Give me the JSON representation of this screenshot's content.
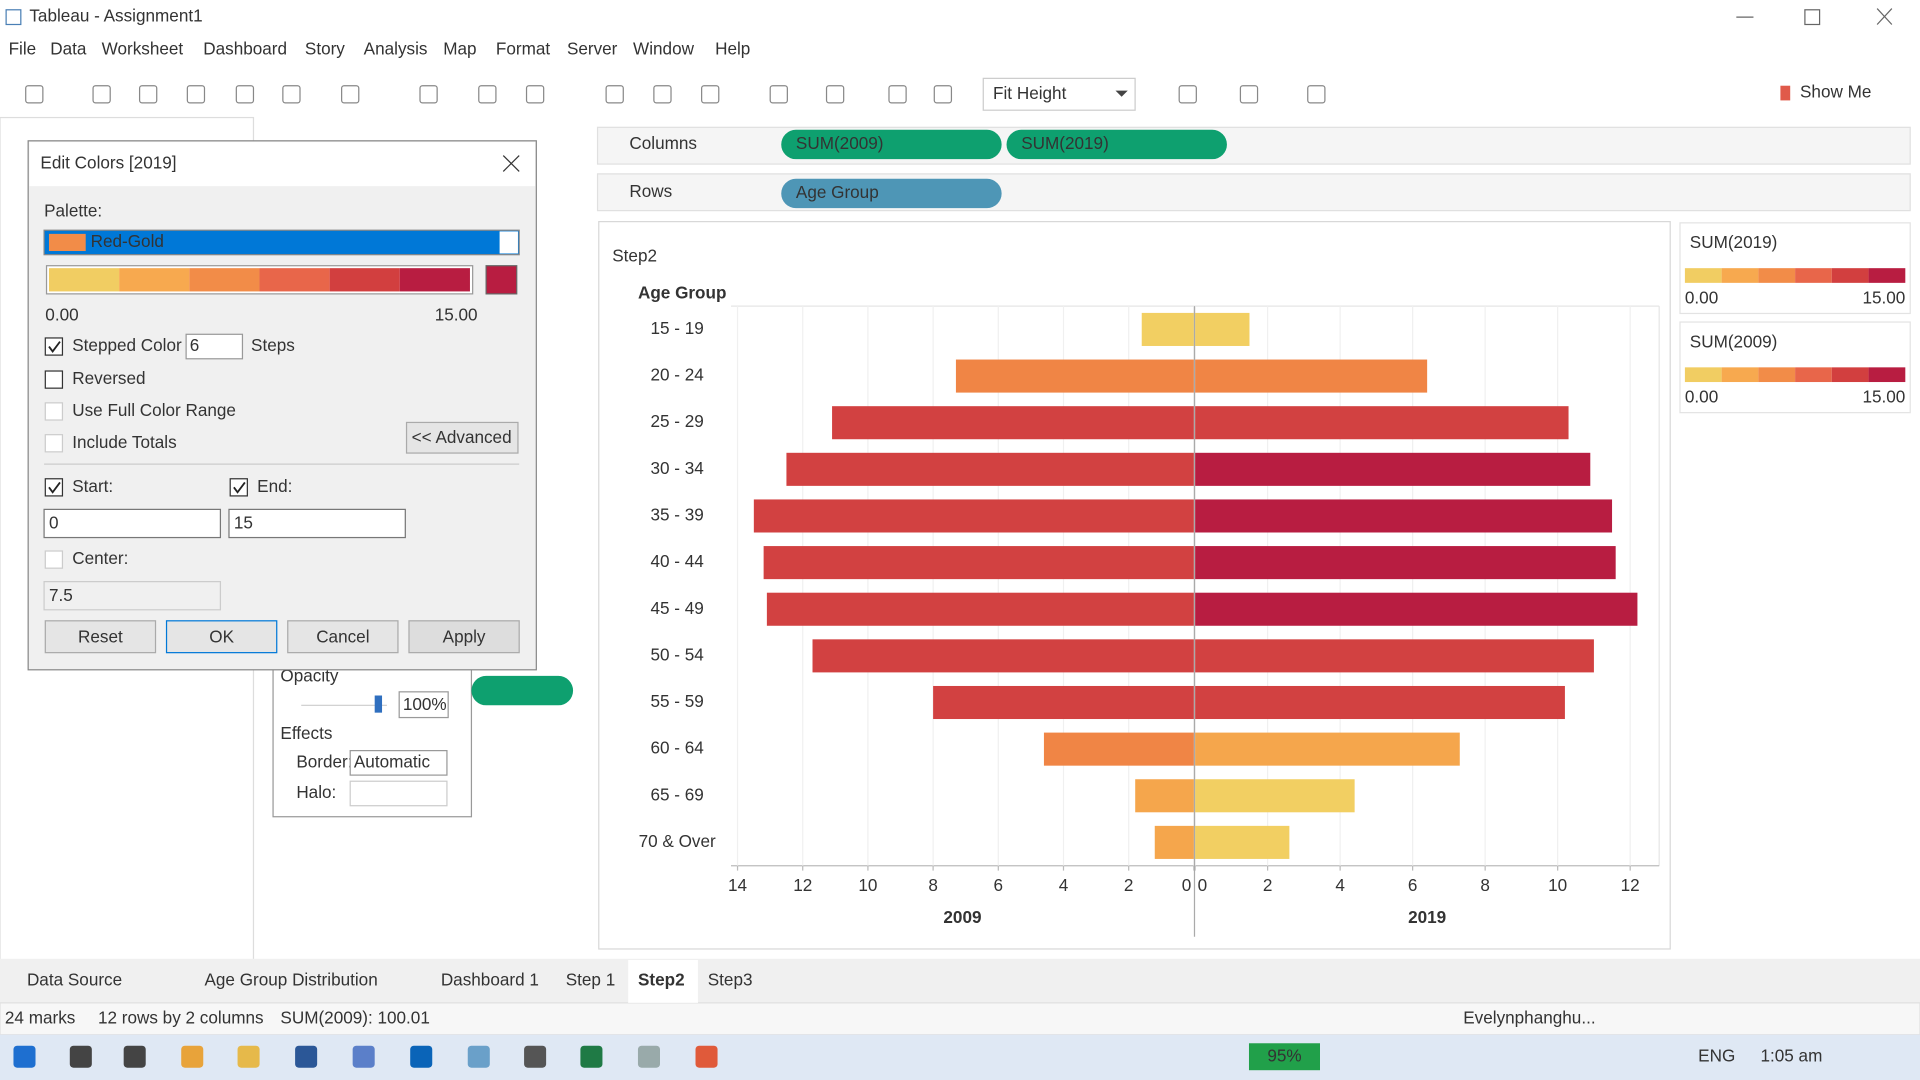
{
  "window": {
    "title": "Tableau - Assignment1"
  },
  "menu": [
    "File",
    "Data",
    "Worksheet",
    "Dashboard",
    "Story",
    "Analysis",
    "Map",
    "Format",
    "Server",
    "Window",
    "Help"
  ],
  "toolbar": {
    "fit": "Fit Height",
    "show_me": "Show Me"
  },
  "shelves": {
    "columns_label": "Columns",
    "columns": [
      "SUM(2009)",
      "SUM(2019)"
    ],
    "rows_label": "Rows",
    "rows": [
      "Age Group"
    ]
  },
  "dialog": {
    "title": "Edit Colors [2019]",
    "palette_label": "Palette:",
    "palette": "Red-Gold",
    "palette_colors": [
      "#f1cd62",
      "#f7a94f",
      "#f28c48",
      "#e8664a",
      "#d23f3f",
      "#b81d41"
    ],
    "range_min": "0.00",
    "range_max": "15.00",
    "stepped": "Stepped Color",
    "steps_value": "6",
    "steps": "Steps",
    "reversed": "Reversed",
    "full_range": "Use Full Color Range",
    "include_totals": "Include Totals",
    "advanced": "<< Advanced",
    "start": "Start:",
    "end": "End:",
    "start_value": "0",
    "end_value": "15",
    "center": "Center:",
    "center_value": "7.5",
    "buttons": [
      "Reset",
      "OK",
      "Cancel",
      "Apply"
    ]
  },
  "marks_card": {
    "opacity": "Opacity",
    "opacity_value": "100%",
    "effects": "Effects",
    "border": "Border:",
    "border_value": "Automatic",
    "halo": "Halo:"
  },
  "chart_data": {
    "type": "bar",
    "title": "Step2",
    "y_label": "Age Group",
    "categories": [
      "15 - 19",
      "20 - 24",
      "25 - 29",
      "30 - 34",
      "35 - 39",
      "40 - 44",
      "45 - 49",
      "50 - 54",
      "55 - 59",
      "60 - 64",
      "65 - 69",
      "70 & Over"
    ],
    "series": [
      {
        "name": "2009",
        "values": [
          1.6,
          7.3,
          11.1,
          12.5,
          13.5,
          13.2,
          13.1,
          11.7,
          8.0,
          4.6,
          1.8,
          1.2
        ],
        "colors": [
          "#f2cf62",
          "#f08545",
          "#d24141",
          "#d24141",
          "#d24141",
          "#d24141",
          "#d24141",
          "#d24141",
          "#d24141",
          "#f08545",
          "#f5a64c",
          "#f5a64c"
        ],
        "xlim": [
          0,
          14.2
        ],
        "xticks": [
          0,
          2,
          4,
          6,
          8,
          10,
          12,
          14
        ]
      },
      {
        "name": "2019",
        "values": [
          1.5,
          6.4,
          10.3,
          10.9,
          11.5,
          11.6,
          12.2,
          11.0,
          10.2,
          7.3,
          4.4,
          2.6
        ],
        "colors": [
          "#f2cf62",
          "#f08545",
          "#d24141",
          "#b81d41",
          "#b81d41",
          "#b81d41",
          "#b81d41",
          "#d24141",
          "#d24141",
          "#f5a64c",
          "#f2cf62",
          "#f2cf62"
        ],
        "xlim": [
          0,
          12.8
        ],
        "xticks": [
          0,
          2,
          4,
          6,
          8,
          10,
          12
        ]
      }
    ],
    "grid": true
  },
  "legends": [
    {
      "title": "SUM(2019)",
      "min": "0.00",
      "max": "15.00"
    },
    {
      "title": "SUM(2009)",
      "min": "0.00",
      "max": "15.00"
    }
  ],
  "tabs": [
    "Data Source",
    "Age Group Distribution",
    "Dashboard 1",
    "Step 1",
    "Step2",
    "Step3"
  ],
  "status": [
    "24 marks",
    "12 rows by 2 columns",
    "SUM(2009): 100.01",
    "Evelynphanghu..."
  ],
  "taskbar": {
    "zoom": "95%",
    "language": "ENG",
    "time": "1:05 am"
  }
}
